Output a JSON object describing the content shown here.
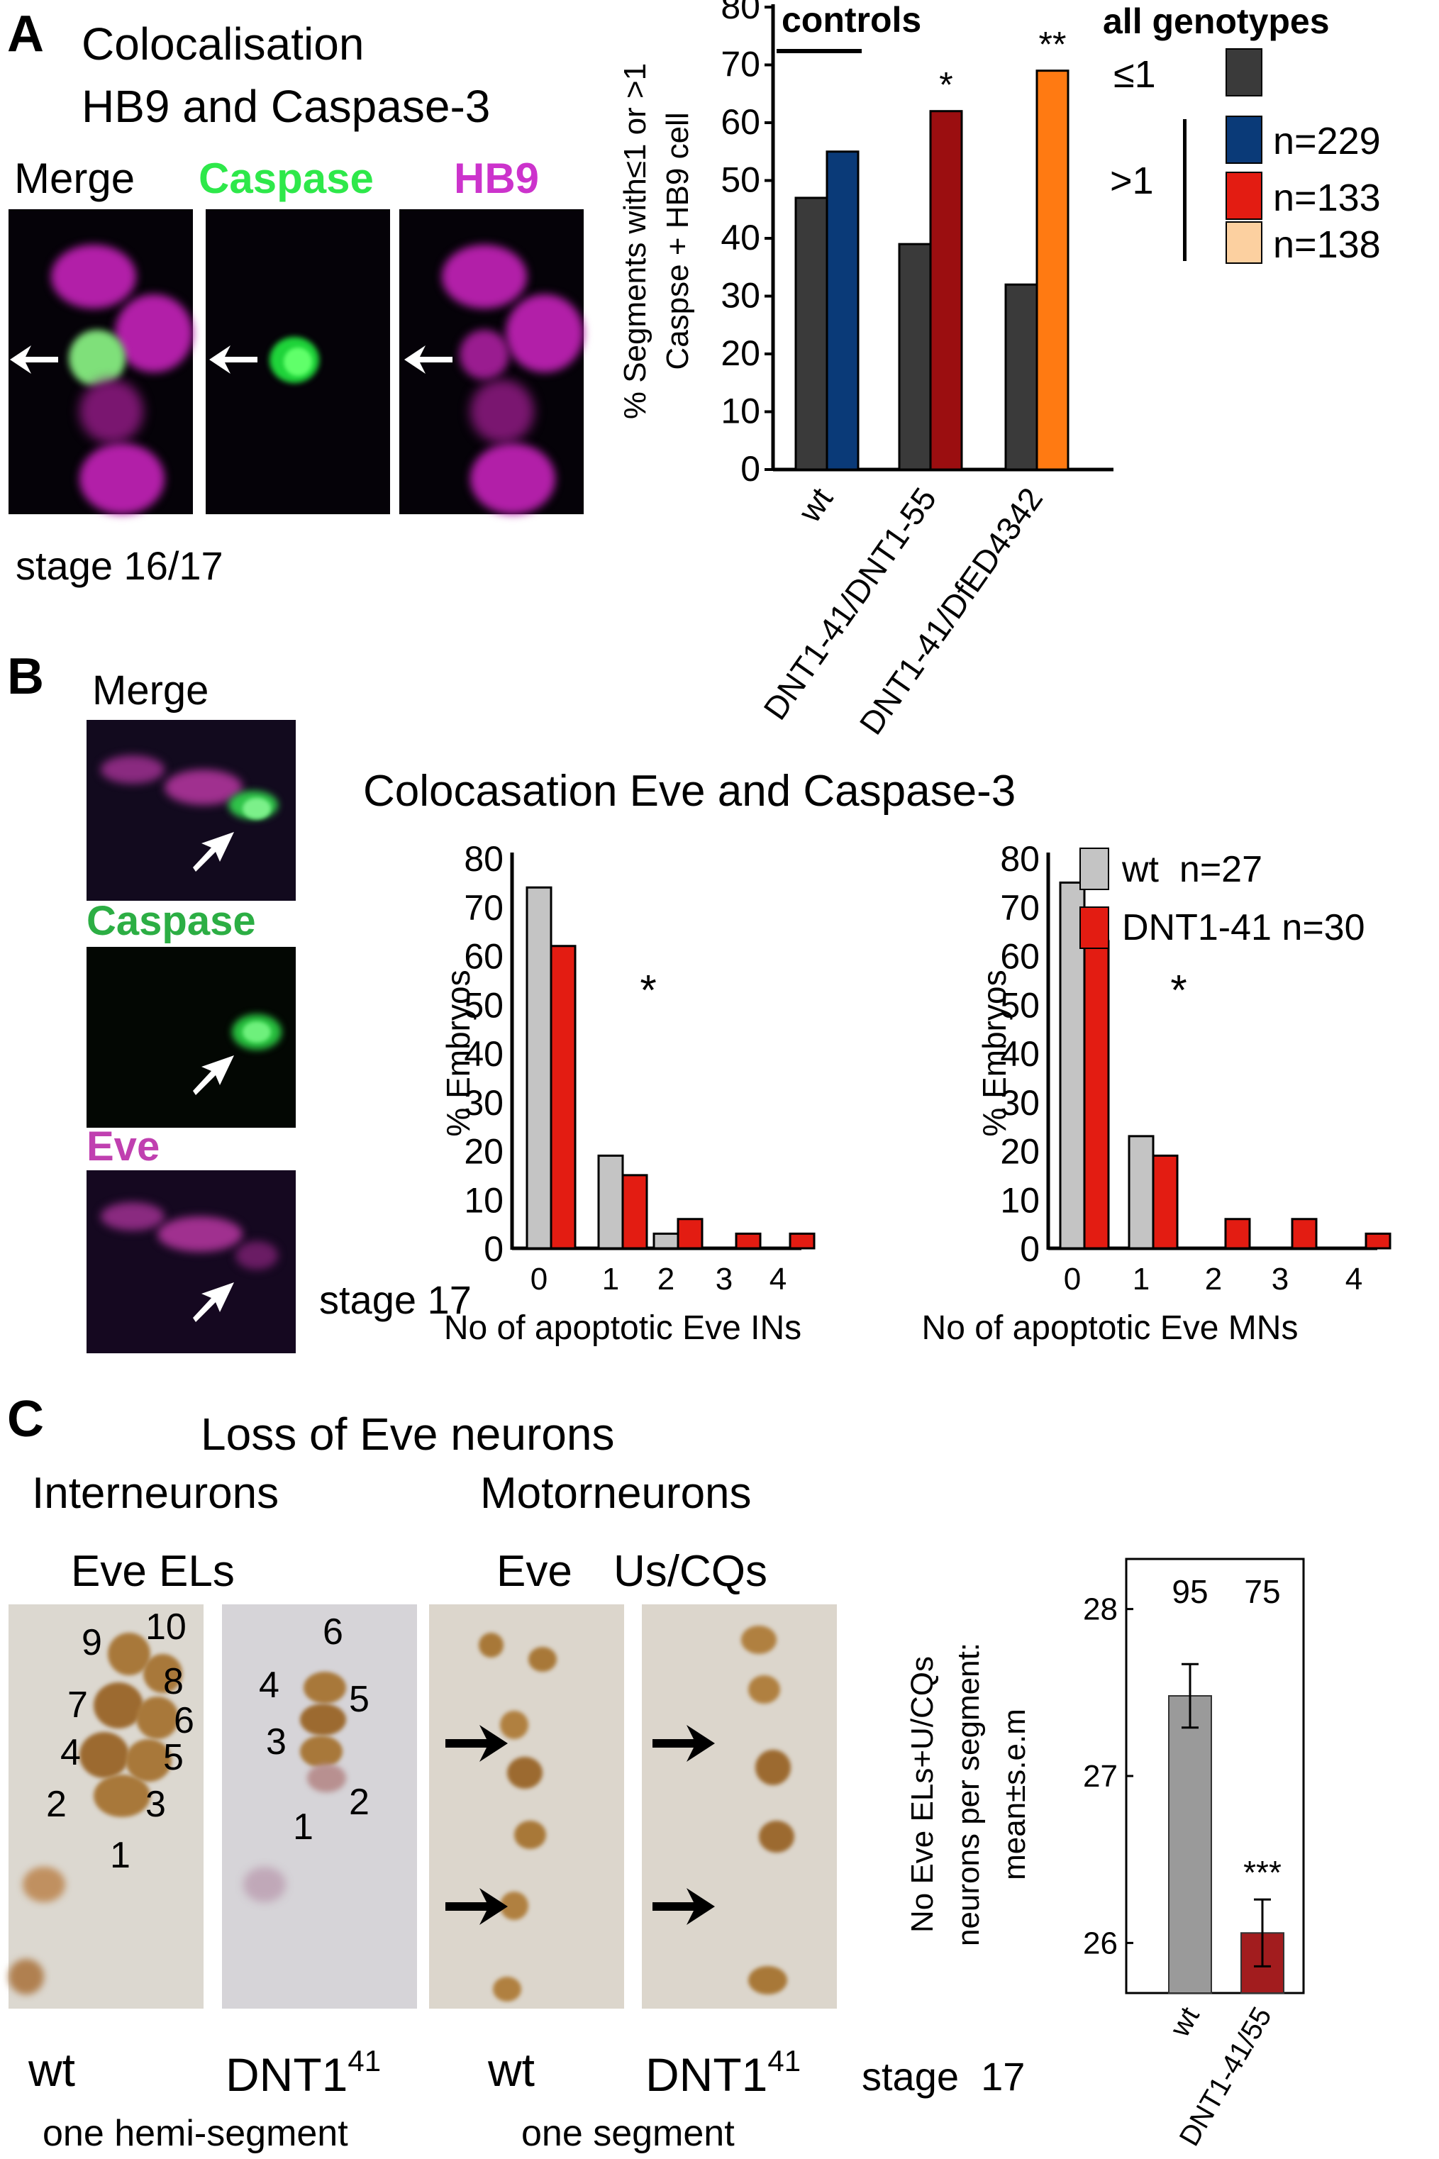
{
  "panelA": {
    "letter": "A",
    "title_line1": "Colocalisation",
    "title_line2": "HB9 and Caspase-3",
    "label_merge": "Merge",
    "label_caspase": "Caspase",
    "label_hb9": "HB9",
    "stage": "stage 16/17",
    "legend": {
      "title": "all genotypes",
      "le1": "≤1",
      "gt1": ">1",
      "n1": "n=229",
      "n2": "n=133",
      "n3": "n=138"
    }
  },
  "panelB": {
    "letter": "B",
    "label_merge": "Merge",
    "label_caspase": "Caspase",
    "label_eve": "Eve",
    "stage": "stage 17",
    "title": "Colocasation Eve and Caspase-3",
    "legend_wt": "wt  n=27",
    "legend_mut": "DNT1-41 n=30"
  },
  "panelC": {
    "letter": "C",
    "title": "Loss of Eve neurons",
    "sub_interneurons": "Interneurons",
    "sub_motorneurons": "Motorneurons",
    "label_eve_els": "Eve ELs",
    "label_eve": "Eve",
    "label_us_cqs": "Us/CQs",
    "cap_wt1": "wt",
    "cap_dnt1_base": "DNT1",
    "cap_dnt1_sup": "41",
    "cap_wt2": "wt",
    "cap_dnt2_base": "DNT1",
    "cap_dnt2_sup": "41",
    "cap_stage": "stage  17",
    "cap_hemi": "one hemi-segment",
    "cap_segment": "one segment",
    "wt_cell_numbers": [
      "1",
      "2",
      "3",
      "4",
      "5",
      "6",
      "7",
      "8",
      "9",
      "10"
    ],
    "mut_cell_numbers": [
      "1",
      "2",
      "3",
      "4",
      "5",
      "6"
    ]
  },
  "colors": {
    "dark_gray": "#3a3a3a",
    "navy": "#0a3a78",
    "dark_red": "#9b0e10",
    "orange": "#ff7a12",
    "light_orange": "#fcd0a0",
    "light_gray": "#c4c4c4",
    "red": "#e31c12",
    "bar_gray": "#9a9a9a",
    "bar_red": "#a21c1e",
    "caspase_green": "#22b04a",
    "hb9_magenta": "#c040b0"
  },
  "chart_data": [
    {
      "id": "A",
      "type": "bar",
      "categories": [
        "wt",
        "DNT1-41/DNT1-55",
        "DNT1-41/DfED4342"
      ],
      "series": [
        {
          "name": "≤1",
          "values": [
            47,
            39,
            32
          ]
        },
        {
          "name": ">1",
          "values": [
            55,
            62,
            69
          ]
        }
      ],
      "ylabel_line1": "% Segments with≤1 or >1",
      "ylabel_line2": "Caspse + HB9 cell",
      "ylim": [
        0,
        80
      ],
      "yticks": [
        "0",
        "10",
        "20",
        "30",
        "40",
        "50",
        "60",
        "70",
        "80"
      ],
      "annotations": [
        "controls",
        "*",
        "**"
      ]
    },
    {
      "id": "B1",
      "type": "bar",
      "categories": [
        "0",
        "1",
        "2",
        "3",
        "4"
      ],
      "series": [
        {
          "name": "wt",
          "values": [
            74,
            19,
            3,
            0,
            0
          ]
        },
        {
          "name": "DNT1-41",
          "values": [
            62,
            15,
            6,
            3,
            3
          ]
        }
      ],
      "ylabel": "% Embryos",
      "xlabel": "No of apoptotic Eve INs",
      "ylim": [
        0,
        80
      ],
      "yticks": [
        "0",
        "10",
        "20",
        "30",
        "40",
        "50",
        "60",
        "70",
        "80"
      ],
      "annotations": [
        "*"
      ]
    },
    {
      "id": "B2",
      "type": "bar",
      "categories": [
        "0",
        "1",
        "2",
        "3",
        "4"
      ],
      "series": [
        {
          "name": "wt",
          "values": [
            75,
            23,
            0,
            0,
            0
          ]
        },
        {
          "name": "DNT1-41",
          "values": [
            63,
            19,
            6,
            6,
            3
          ]
        }
      ],
      "ylabel": "% Embryos",
      "xlabel": "No of apoptotic Eve MNs",
      "ylim": [
        0,
        80
      ],
      "yticks": [
        "0",
        "10",
        "20",
        "30",
        "40",
        "50",
        "60",
        "70",
        "80"
      ],
      "annotations": [
        "*"
      ]
    },
    {
      "id": "C",
      "type": "bar",
      "categories": [
        "wt",
        "DNT1-41/55"
      ],
      "values": [
        27.48,
        26.06
      ],
      "errors": [
        0.19,
        0.2
      ],
      "n_labels": [
        "95",
        "75"
      ],
      "ylabel_line1": "No Eve ELs+U/CQs",
      "ylabel_line2": "neurons per segment:",
      "ylabel_line3": "mean±s.e.m",
      "ylim": [
        25.7,
        28.3
      ],
      "yticks": [
        "26",
        "27",
        "28"
      ],
      "annotations": [
        "***"
      ]
    }
  ]
}
